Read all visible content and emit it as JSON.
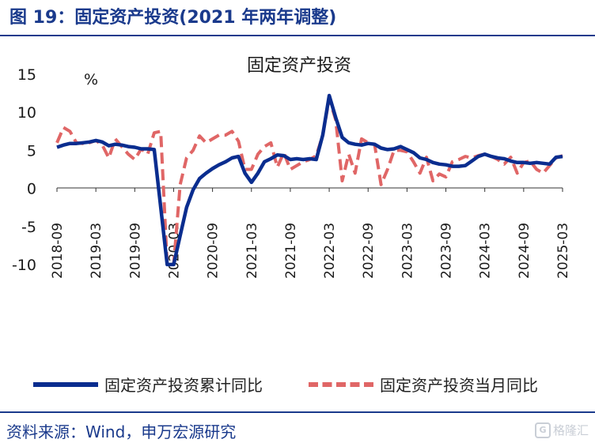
{
  "header": {
    "title": "图 19：固定资产投资(2021 年两年调整)"
  },
  "footer": {
    "source": "资料来源：Wind，申万宏源研究",
    "watermark": "格隆汇",
    "watermark_icon": "G"
  },
  "colors": {
    "series1": "#0a2d8f",
    "series2": "#e06666",
    "axis": "#333333",
    "text": "#1a1a1a"
  },
  "chart_data": {
    "type": "line",
    "title": "固定资产投资",
    "ylabel": "%",
    "ylim": [
      -10,
      15
    ],
    "yticks": [
      15,
      10,
      5,
      0,
      -5,
      -10
    ],
    "x_range": [
      0,
      78
    ],
    "x_ticks": [
      {
        "i": 0,
        "label": "2018-09"
      },
      {
        "i": 6,
        "label": "2019-03"
      },
      {
        "i": 12,
        "label": "2019-09"
      },
      {
        "i": 18,
        "label": "2020-03"
      },
      {
        "i": 24,
        "label": "2020-09"
      },
      {
        "i": 30,
        "label": "2021-03"
      },
      {
        "i": 36,
        "label": "2021-09"
      },
      {
        "i": 42,
        "label": "2022-03"
      },
      {
        "i": 48,
        "label": "2022-09"
      },
      {
        "i": 54,
        "label": "2023-03"
      },
      {
        "i": 60,
        "label": "2023-09"
      },
      {
        "i": 66,
        "label": "2024-03"
      },
      {
        "i": 72,
        "label": "2024-09"
      },
      {
        "i": 78,
        "label": "2025-03"
      }
    ],
    "series": [
      {
        "name": "固定资产投资累计同比",
        "style": "solid",
        "points": [
          [
            0,
            5.4
          ],
          [
            1,
            5.7
          ],
          [
            2,
            5.9
          ],
          [
            3,
            5.9
          ],
          [
            4,
            6.0
          ],
          [
            5,
            6.1
          ],
          [
            6,
            6.3
          ],
          [
            7,
            6.1
          ],
          [
            8,
            5.6
          ],
          [
            9,
            5.8
          ],
          [
            10,
            5.7
          ],
          [
            11,
            5.5
          ],
          [
            12,
            5.4
          ],
          [
            13,
            5.2
          ],
          [
            14,
            5.2
          ],
          [
            15,
            5.1
          ],
          [
            17,
            -10.0
          ],
          [
            18,
            -10.0
          ],
          [
            19,
            -6.2
          ],
          [
            20,
            -2.5
          ],
          [
            21,
            -0.2
          ],
          [
            22,
            1.3
          ],
          [
            23,
            2.0
          ],
          [
            24,
            2.6
          ],
          [
            25,
            3.1
          ],
          [
            26,
            3.5
          ],
          [
            27,
            4.0
          ],
          [
            28,
            4.2
          ],
          [
            29,
            2.0
          ],
          [
            30,
            0.8
          ],
          [
            31,
            2.0
          ],
          [
            32,
            3.5
          ],
          [
            33,
            3.9
          ],
          [
            34,
            4.4
          ],
          [
            35,
            4.3
          ],
          [
            36,
            3.8
          ],
          [
            37,
            3.9
          ],
          [
            38,
            3.8
          ],
          [
            39,
            3.9
          ],
          [
            40,
            3.8
          ],
          [
            41,
            7.0
          ],
          [
            42,
            12.2
          ],
          [
            43,
            9.3
          ],
          [
            44,
            6.7
          ],
          [
            45,
            6.0
          ],
          [
            46,
            5.8
          ],
          [
            47,
            5.7
          ],
          [
            48,
            5.9
          ],
          [
            49,
            5.8
          ],
          [
            50,
            5.3
          ],
          [
            51,
            5.1
          ],
          [
            52,
            5.2
          ],
          [
            53,
            5.5
          ],
          [
            54,
            5.1
          ],
          [
            55,
            4.7
          ],
          [
            56,
            4.0
          ],
          [
            57,
            3.8
          ],
          [
            58,
            3.4
          ],
          [
            59,
            3.2
          ],
          [
            60,
            3.1
          ],
          [
            61,
            2.9
          ],
          [
            62,
            2.9
          ],
          [
            63,
            3.0
          ],
          [
            64,
            3.6
          ],
          [
            65,
            4.2
          ],
          [
            66,
            4.5
          ],
          [
            67,
            4.2
          ],
          [
            68,
            4.0
          ],
          [
            69,
            3.9
          ],
          [
            70,
            3.6
          ],
          [
            71,
            3.4
          ],
          [
            72,
            3.4
          ],
          [
            73,
            3.3
          ],
          [
            74,
            3.4
          ],
          [
            75,
            3.3
          ],
          [
            76,
            3.2
          ],
          [
            77,
            4.1
          ],
          [
            78,
            4.2
          ]
        ]
      },
      {
        "name": "固定资产投资当月同比",
        "style": "dashed",
        "points": [
          [
            0,
            6.0
          ],
          [
            1,
            8.0
          ],
          [
            2,
            7.5
          ],
          [
            3,
            6.0
          ],
          [
            4,
            5.9
          ],
          [
            5,
            6.0
          ],
          [
            6,
            6.3
          ],
          [
            7,
            5.7
          ],
          [
            8,
            4.0
          ],
          [
            9,
            6.5
          ],
          [
            10,
            5.5
          ],
          [
            11,
            4.5
          ],
          [
            12,
            3.8
          ],
          [
            13,
            5.2
          ],
          [
            14,
            4.5
          ],
          [
            15,
            7.3
          ],
          [
            16,
            7.5
          ],
          [
            17,
            -10.0
          ],
          [
            18,
            -10.0
          ],
          [
            19,
            0.5
          ],
          [
            20,
            4.0
          ],
          [
            21,
            5.0
          ],
          [
            22,
            6.9
          ],
          [
            23,
            6.0
          ],
          [
            24,
            6.5
          ],
          [
            25,
            7.0
          ],
          [
            26,
            7.0
          ],
          [
            27,
            7.5
          ],
          [
            28,
            6.2
          ],
          [
            29,
            2.5
          ],
          [
            30,
            2.5
          ],
          [
            31,
            4.5
          ],
          [
            32,
            5.5
          ],
          [
            33,
            6.0
          ],
          [
            34,
            2.8
          ],
          [
            35,
            4.7
          ],
          [
            36,
            2.5
          ],
          [
            37,
            3.0
          ],
          [
            38,
            3.5
          ],
          [
            39,
            3.8
          ],
          [
            40,
            4.3
          ],
          [
            41,
            7.0
          ],
          [
            42,
            11.8
          ],
          [
            43,
            9.0
          ],
          [
            44,
            1.0
          ],
          [
            45,
            4.5
          ],
          [
            46,
            2.0
          ],
          [
            47,
            6.5
          ],
          [
            48,
            6.0
          ],
          [
            49,
            5.8
          ],
          [
            50,
            0.5
          ],
          [
            51,
            2.5
          ],
          [
            52,
            5.0
          ],
          [
            53,
            5.0
          ],
          [
            54,
            4.8
          ],
          [
            55,
            3.5
          ],
          [
            56,
            2.0
          ],
          [
            57,
            4.1
          ],
          [
            58,
            1.0
          ],
          [
            59,
            1.9
          ],
          [
            60,
            1.5
          ],
          [
            61,
            3.5
          ],
          [
            62,
            3.8
          ],
          [
            63,
            4.2
          ],
          [
            64,
            4.0
          ],
          [
            65,
            4.3
          ],
          [
            66,
            4.5
          ],
          [
            67,
            4.2
          ],
          [
            68,
            3.8
          ],
          [
            69,
            3.2
          ],
          [
            70,
            4.1
          ],
          [
            71,
            2.0
          ],
          [
            72,
            3.4
          ],
          [
            73,
            3.6
          ],
          [
            74,
            2.5
          ],
          [
            75,
            2.0
          ],
          [
            76,
            3.0
          ],
          [
            77,
            4.0
          ],
          [
            78,
            4.3
          ]
        ]
      }
    ]
  }
}
